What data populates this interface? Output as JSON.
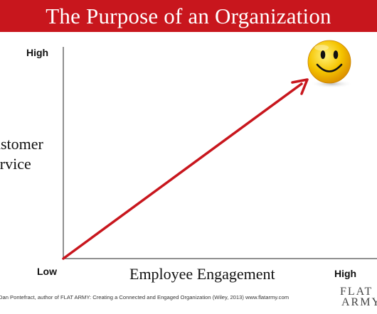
{
  "title": "The Purpose of an Organization",
  "y_axis": {
    "label_lines": [
      "ustomer",
      "ervice"
    ],
    "high_label": "High"
  },
  "x_axis": {
    "label": "Employee Engagement",
    "low_label": "Low",
    "high_label": "High"
  },
  "footer": "Dan Pontefract, author of FLAT ARMY: Creating a Connected  and Engaged Organization (Wiley,  2013) www.flatarmy.com",
  "logo": {
    "line1": "FLAT",
    "line2": "ARMY"
  },
  "colors": {
    "title_bar": "#c8161d",
    "arrow": "#c8161d",
    "smiley_face": "#f5c400"
  },
  "icons": {
    "smiley": "smiley-face-icon"
  }
}
